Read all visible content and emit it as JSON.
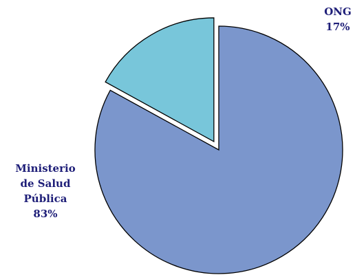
{
  "chart_data": {
    "type": "pie",
    "title": "",
    "slices": [
      {
        "label": "Ministerio de Salud Pública",
        "label_lines": [
          "Ministerio",
          "de Salud",
          "Pública",
          "83%"
        ],
        "percent_label": "83%",
        "value": 83,
        "color": "#7b96cc",
        "exploded": false
      },
      {
        "label": "ONG",
        "label_lines": [
          "ONG",
          "17%"
        ],
        "percent_label": "17%",
        "value": 17,
        "color": "#78c6da",
        "exploded": true
      }
    ],
    "start_angle_deg": 0,
    "direction": "clockwise",
    "legend": "none"
  }
}
